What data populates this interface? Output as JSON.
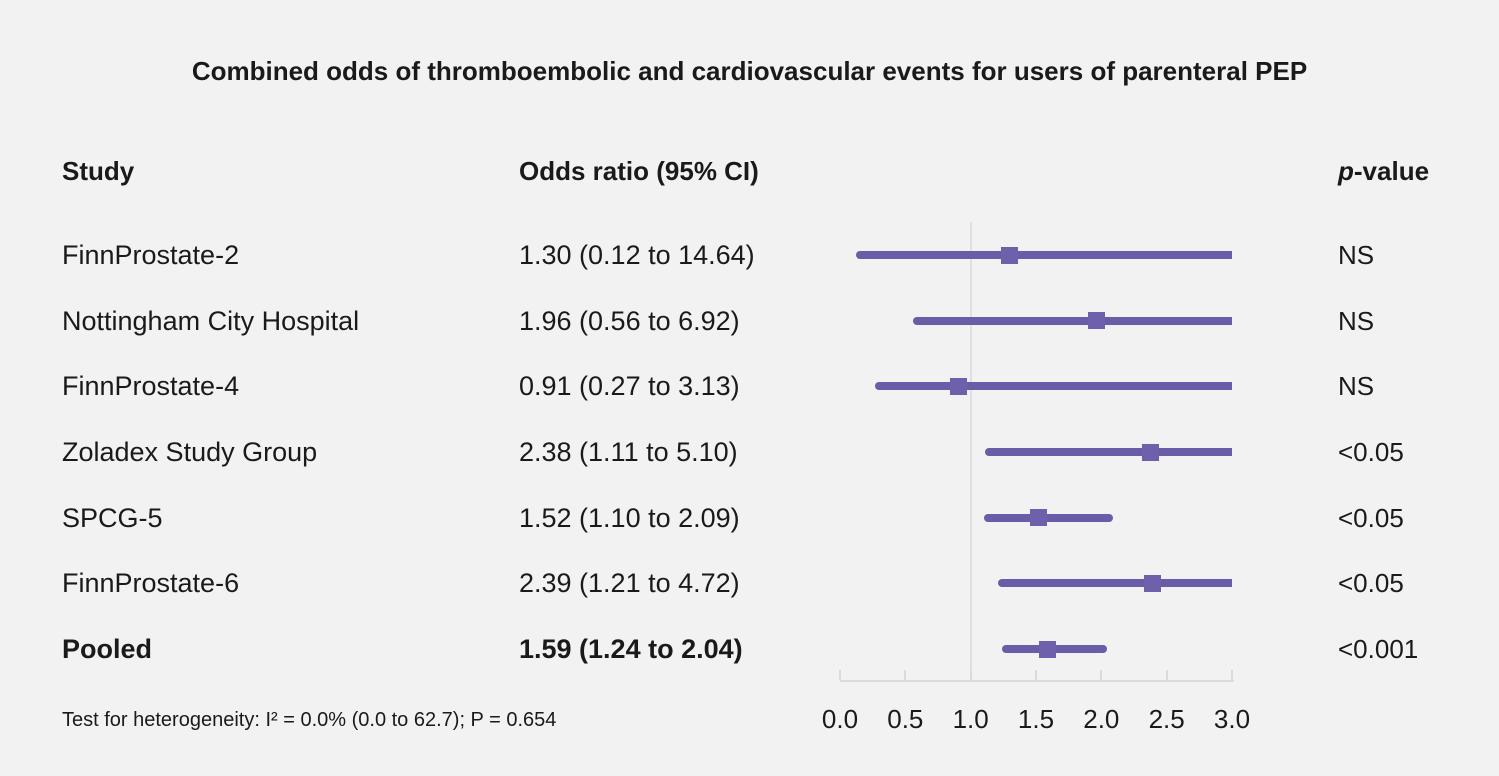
{
  "title": "Combined odds of thromboembolic and cardiovascular events for users of parenteral PEP",
  "columns": {
    "study": "Study",
    "odds_ratio": "Odds ratio (95% CI)",
    "p_prefix": "p",
    "p_suffix": "-value"
  },
  "footnote": "Test for heterogeneity: I² = 0.0% (0.0 to 62.7); P = 0.654",
  "colors": {
    "background": "#f2f2f2",
    "text": "#1a1a1a",
    "ci_line": "#6a5ca6",
    "marker": "#6f60ab",
    "reference_line": "#dde0e3",
    "axis": "#d8dcdf"
  },
  "chart_data": {
    "type": "forest",
    "title": "Combined odds of thromboembolic and cardiovascular events for users of parenteral PEP",
    "x_range": [
      0.0,
      3.0
    ],
    "reference_line": 1.0,
    "tick_values": [
      0.0,
      0.5,
      1.0,
      1.5,
      2.0,
      2.5,
      3.0
    ],
    "tick_labels": [
      "0.0",
      "0.5",
      "1.0",
      "1.5",
      "2.0",
      "2.5",
      "3.0"
    ],
    "grid": false,
    "rows": [
      {
        "study": "FinnProstate-2",
        "or": 1.3,
        "ci_low": 0.12,
        "ci_high": 14.64,
        "or_text": "1.30 (0.12 to 14.64)",
        "p": "NS",
        "bold": false
      },
      {
        "study": "Nottingham City Hospital",
        "or": 1.96,
        "ci_low": 0.56,
        "ci_high": 6.92,
        "or_text": "1.96 (0.56 to 6.92)",
        "p": "NS",
        "bold": false
      },
      {
        "study": "FinnProstate-4",
        "or": 0.91,
        "ci_low": 0.27,
        "ci_high": 3.13,
        "or_text": "0.91 (0.27 to 3.13)",
        "p": "NS",
        "bold": false
      },
      {
        "study": "Zoladex Study Group",
        "or": 2.38,
        "ci_low": 1.11,
        "ci_high": 5.1,
        "or_text": "2.38 (1.11 to 5.10)",
        "p": "<0.05",
        "bold": false
      },
      {
        "study": "SPCG-5",
        "or": 1.52,
        "ci_low": 1.1,
        "ci_high": 2.09,
        "or_text": "1.52 (1.10 to 2.09)",
        "p": "<0.05",
        "bold": false
      },
      {
        "study": "FinnProstate-6",
        "or": 2.39,
        "ci_low": 1.21,
        "ci_high": 4.72,
        "or_text": "2.39 (1.21 to 4.72)",
        "p": "<0.05",
        "bold": false
      },
      {
        "study": "Pooled",
        "or": 1.59,
        "ci_low": 1.24,
        "ci_high": 2.04,
        "or_text": "1.59 (1.24 to 2.04)",
        "p": "<0.001",
        "bold": true
      }
    ]
  }
}
